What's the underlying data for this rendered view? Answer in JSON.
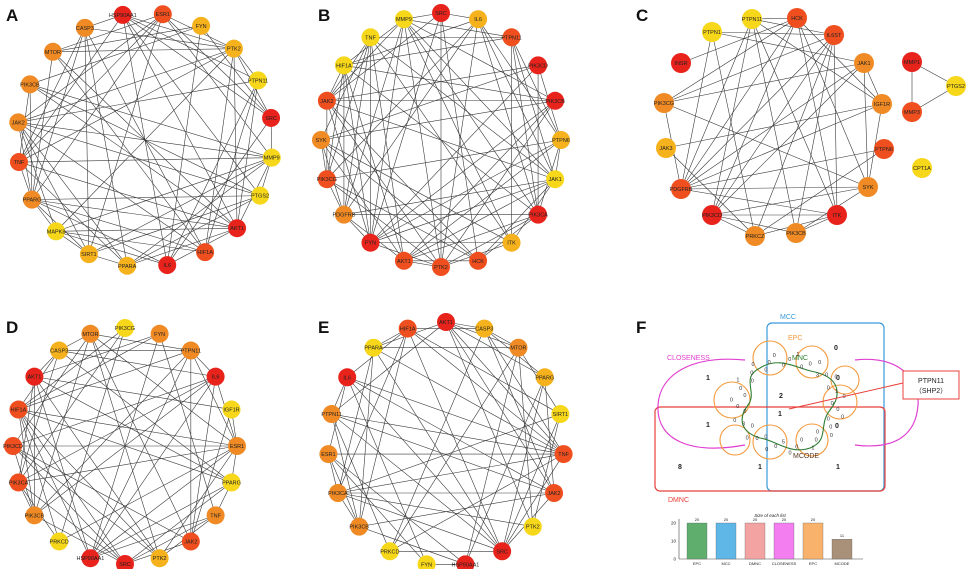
{
  "panels": [
    "A",
    "B",
    "C",
    "D",
    "E",
    "F"
  ],
  "colors": {
    "red": "#e8231c",
    "orange_red": "#ef4f1f",
    "orange": "#f08a24",
    "amber": "#f5b21c",
    "yellow": "#f7d71a",
    "edge": "#3a3a3a"
  },
  "network_A": {
    "nodes": [
      {
        "label": "HSP90AA1",
        "color": "red"
      },
      {
        "label": "ESR1",
        "color": "orange_red"
      },
      {
        "label": "FYN",
        "color": "amber"
      },
      {
        "label": "PTK2",
        "color": "amber"
      },
      {
        "label": "PTPN11",
        "color": "yellow"
      },
      {
        "label": "SRC",
        "color": "red"
      },
      {
        "label": "MMP9",
        "color": "yellow"
      },
      {
        "label": "PTGS2",
        "color": "yellow"
      },
      {
        "label": "AKT1",
        "color": "red"
      },
      {
        "label": "HIF1A",
        "color": "orange_red"
      },
      {
        "label": "IL6",
        "color": "red"
      },
      {
        "label": "PPARA",
        "color": "amber"
      },
      {
        "label": "SIRT1",
        "color": "amber"
      },
      {
        "label": "MAPK8",
        "color": "yellow"
      },
      {
        "label": "PPARG",
        "color": "orange"
      },
      {
        "label": "TNF",
        "color": "orange_red"
      },
      {
        "label": "JAK2",
        "color": "orange"
      },
      {
        "label": "PIK3CB",
        "color": "orange"
      },
      {
        "label": "MTOR",
        "color": "orange"
      },
      {
        "label": "CASP3",
        "color": "orange"
      }
    ]
  },
  "network_B": {
    "nodes": [
      {
        "label": "SRC",
        "color": "red"
      },
      {
        "label": "IL6",
        "color": "amber"
      },
      {
        "label": "PTPN11",
        "color": "orange_red"
      },
      {
        "label": "PIK3CD",
        "color": "red"
      },
      {
        "label": "PIK3CB",
        "color": "red"
      },
      {
        "label": "PTPN6",
        "color": "amber"
      },
      {
        "label": "JAK1",
        "color": "yellow"
      },
      {
        "label": "PIK3CA",
        "color": "red"
      },
      {
        "label": "ITK",
        "color": "amber"
      },
      {
        "label": "HCK",
        "color": "orange_red"
      },
      {
        "label": "PTK2",
        "color": "orange_red"
      },
      {
        "label": "AKT1",
        "color": "orange_red"
      },
      {
        "label": "FYN",
        "color": "red"
      },
      {
        "label": "PDGFRB",
        "color": "orange"
      },
      {
        "label": "PIK3CG",
        "color": "orange_red"
      },
      {
        "label": "SYK",
        "color": "orange"
      },
      {
        "label": "JAK2",
        "color": "orange_red"
      },
      {
        "label": "HIF1A",
        "color": "yellow"
      },
      {
        "label": "TNF",
        "color": "yellow"
      },
      {
        "label": "MMP9",
        "color": "yellow"
      }
    ]
  },
  "network_C": {
    "nodes": [
      {
        "label": "PTPN11",
        "color": "yellow"
      },
      {
        "label": "HCK",
        "color": "orange_red"
      },
      {
        "label": "IL6ST",
        "color": "orange_red"
      },
      {
        "label": "JAK1",
        "color": "orange"
      },
      {
        "label": "IGF1R",
        "color": "orange"
      },
      {
        "label": "PTPN6",
        "color": "orange_red"
      },
      {
        "label": "SYK",
        "color": "orange"
      },
      {
        "label": "ITK",
        "color": "red"
      },
      {
        "label": "PIK3CB",
        "color": "orange"
      },
      {
        "label": "PRKCZ",
        "color": "orange"
      },
      {
        "label": "PIK3CD",
        "color": "red"
      },
      {
        "label": "PDGFRB",
        "color": "orange_red"
      },
      {
        "label": "JAK3",
        "color": "amber"
      },
      {
        "label": "PIK3CG",
        "color": "orange"
      },
      {
        "label": "INSR",
        "color": "red"
      },
      {
        "label": "PTPN1",
        "color": "yellow"
      },
      {
        "label": "MMP1",
        "color": "red"
      },
      {
        "label": "PTGS2",
        "color": "yellow"
      },
      {
        "label": "MMP3",
        "color": "orange_red"
      },
      {
        "label": "CPT1A",
        "color": "yellow"
      }
    ]
  },
  "network_D": {
    "nodes": [
      {
        "label": "PIK3CG",
        "color": "yellow"
      },
      {
        "label": "FYN",
        "color": "orange"
      },
      {
        "label": "PTPN11",
        "color": "orange"
      },
      {
        "label": "IL6",
        "color": "red"
      },
      {
        "label": "IGF1R",
        "color": "yellow"
      },
      {
        "label": "ESR1",
        "color": "orange"
      },
      {
        "label": "PPARG",
        "color": "yellow"
      },
      {
        "label": "TNF",
        "color": "orange"
      },
      {
        "label": "JAK2",
        "color": "orange_red"
      },
      {
        "label": "PTK2",
        "color": "amber"
      },
      {
        "label": "SRC",
        "color": "red"
      },
      {
        "label": "HSP90AA1",
        "color": "red"
      },
      {
        "label": "PRKCD",
        "color": "yellow"
      },
      {
        "label": "PIK3CB",
        "color": "orange"
      },
      {
        "label": "PIK3CA",
        "color": "orange_red"
      },
      {
        "label": "PIK3CD",
        "color": "orange_red"
      },
      {
        "label": "HIF1A",
        "color": "orange_red"
      },
      {
        "label": "AKT1",
        "color": "red"
      },
      {
        "label": "CASP3",
        "color": "amber"
      },
      {
        "label": "MTOR",
        "color": "orange"
      }
    ]
  },
  "network_E": {
    "nodes": [
      {
        "label": "AKT1",
        "color": "red"
      },
      {
        "label": "CASP3",
        "color": "amber"
      },
      {
        "label": "MTOR",
        "color": "orange"
      },
      {
        "label": "PPARG",
        "color": "amber"
      },
      {
        "label": "SIRT1",
        "color": "yellow"
      },
      {
        "label": "TNF",
        "color": "orange_red"
      },
      {
        "label": "JAK2",
        "color": "orange_red"
      },
      {
        "label": "PTK2",
        "color": "yellow"
      },
      {
        "label": "SRC",
        "color": "red"
      },
      {
        "label": "HSP90AA1",
        "color": "red"
      },
      {
        "label": "FYN",
        "color": "yellow"
      },
      {
        "label": "PRKCD",
        "color": "yellow"
      },
      {
        "label": "PIK3CB",
        "color": "orange"
      },
      {
        "label": "PIK3CA",
        "color": "orange"
      },
      {
        "label": "ESR1",
        "color": "orange"
      },
      {
        "label": "PTPN11",
        "color": "orange"
      },
      {
        "label": "IL6",
        "color": "red"
      },
      {
        "label": "PPARA",
        "color": "yellow"
      },
      {
        "label": "HIF1A",
        "color": "orange_red"
      }
    ]
  },
  "venn": {
    "sets": [
      {
        "name": "MCC",
        "color": "#3b9ad9"
      },
      {
        "name": "EPC",
        "color": "#f39a3d"
      },
      {
        "name": "MNC",
        "color": "#2e7d32"
      },
      {
        "name": "CLOSENESS",
        "color": "#e040d0"
      },
      {
        "name": "MCODE",
        "color": "#5a3a22"
      },
      {
        "name": "DMNC",
        "color": "#e8403a"
      }
    ],
    "callout_line1": "PTPN11",
    "callout_line2": "（SHP2）",
    "callout_color": "#e8403a",
    "bold_counts": [
      "0",
      "1",
      "0",
      "2",
      "1",
      "1",
      "0",
      "8",
      "1",
      "1"
    ],
    "small_counts": [
      "0",
      "0",
      "0",
      "0",
      "0",
      "0",
      "0",
      "0",
      "1",
      "0",
      "0",
      "0",
      "5",
      "0",
      "0",
      "0",
      "0",
      "0",
      "0",
      "3",
      "0",
      "0",
      "0",
      "0",
      "0",
      "0",
      "1",
      "0",
      "0",
      "0",
      "0",
      "0",
      "0",
      "0",
      "0",
      "1",
      "0",
      "0",
      "0",
      "3",
      "0",
      "0",
      "0",
      "1",
      "0"
    ],
    "bar_title": "Size of each list",
    "bar_ticks": [
      "0",
      "10",
      "20"
    ],
    "bars": [
      {
        "label": "EPC",
        "value": 20,
        "color": "#5fae6e"
      },
      {
        "label": "MCC",
        "value": 20,
        "color": "#5fb7e8"
      },
      {
        "label": "DMNC",
        "value": 20,
        "color": "#f4a3a3"
      },
      {
        "label": "CLOSENESS",
        "value": 20,
        "color": "#f27ef0"
      },
      {
        "label": "EPC",
        "value": 20,
        "color": "#f8b26c"
      },
      {
        "label": "MCODE",
        "value": 11,
        "color": "#a89178"
      }
    ]
  }
}
